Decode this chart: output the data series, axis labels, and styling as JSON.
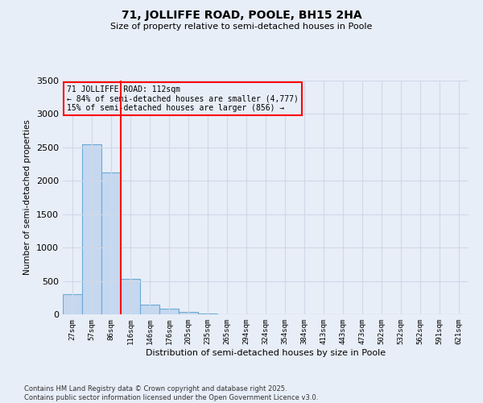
{
  "title": "71, JOLLIFFE ROAD, POOLE, BH15 2HA",
  "subtitle": "Size of property relative to semi-detached houses in Poole",
  "xlabel": "Distribution of semi-detached houses by size in Poole",
  "ylabel": "Number of semi-detached properties",
  "bins": [
    "27sqm",
    "57sqm",
    "86sqm",
    "116sqm",
    "146sqm",
    "176sqm",
    "205sqm",
    "235sqm",
    "265sqm",
    "294sqm",
    "324sqm",
    "354sqm",
    "384sqm",
    "413sqm",
    "443sqm",
    "473sqm",
    "502sqm",
    "532sqm",
    "562sqm",
    "591sqm",
    "621sqm"
  ],
  "values": [
    300,
    2550,
    2120,
    530,
    150,
    80,
    40,
    15,
    5,
    0,
    0,
    0,
    0,
    0,
    0,
    0,
    0,
    0,
    0,
    0,
    0
  ],
  "bar_color": "#c5d8f0",
  "bar_edge_color": "#6aaad4",
  "vline_color": "red",
  "vline_pos": 2.5,
  "annotation_title": "71 JOLLIFFE ROAD: 112sqm",
  "annotation_line1": "← 84% of semi-detached houses are smaller (4,777)",
  "annotation_line2": "15% of semi-detached houses are larger (856) →",
  "ylim": [
    0,
    3500
  ],
  "yticks": [
    0,
    500,
    1000,
    1500,
    2000,
    2500,
    3000,
    3500
  ],
  "background_color": "#e8eef8",
  "grid_color": "#d0d8e8",
  "footer_line1": "Contains HM Land Registry data © Crown copyright and database right 2025.",
  "footer_line2": "Contains public sector information licensed under the Open Government Licence v3.0.",
  "fig_width": 6.0,
  "fig_height": 5.0,
  "dpi": 100
}
